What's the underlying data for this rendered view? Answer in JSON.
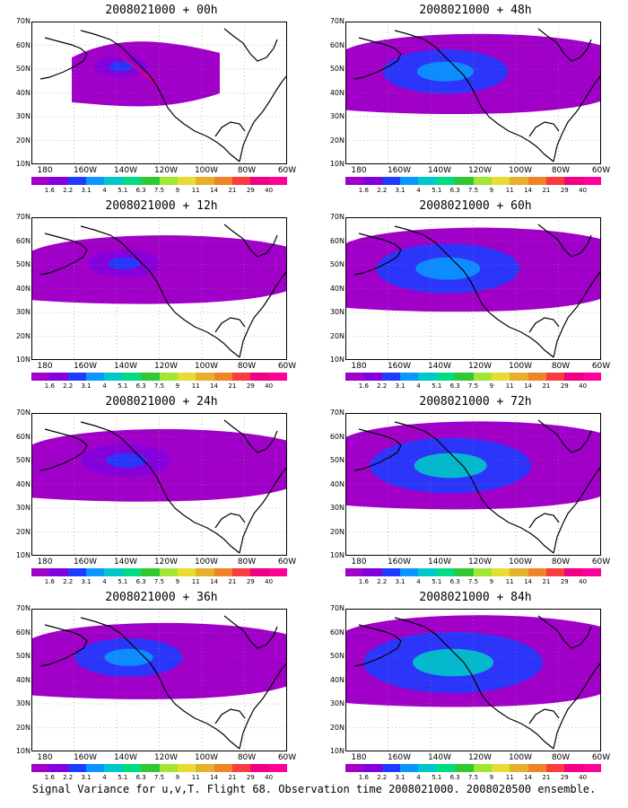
{
  "panels": [
    {
      "title": "2008021000 + 00h",
      "level": 0
    },
    {
      "title": "2008021000 + 48h",
      "level": 4
    },
    {
      "title": "2008021000 + 12h",
      "level": 1
    },
    {
      "title": "2008021000 + 60h",
      "level": 5
    },
    {
      "title": "2008021000 + 24h",
      "level": 2
    },
    {
      "title": "2008021000 + 72h",
      "level": 6
    },
    {
      "title": "2008021000 + 36h",
      "level": 3
    },
    {
      "title": "2008021000 + 84h",
      "level": 7
    }
  ],
  "lat_labels": [
    "70N",
    "60N",
    "50N",
    "40N",
    "30N",
    "20N",
    "10N"
  ],
  "lon_labels": [
    "180",
    "160W",
    "140W",
    "120W",
    "100W",
    "80W",
    "60W"
  ],
  "colorbar": {
    "labels": [
      "1.6",
      "2.2",
      "3.1",
      "4",
      "5.1",
      "6.3",
      "7.5",
      "9",
      "11",
      "14",
      "21",
      "29",
      "40"
    ],
    "colors": [
      "#a000c8",
      "#8200dc",
      "#1e3cff",
      "#0a96ff",
      "#00c8c8",
      "#00dc82",
      "#32c832",
      "#a0e632",
      "#e6dc32",
      "#e6af2d",
      "#f08228",
      "#fa3c3c",
      "#f00082",
      "#ff0099"
    ]
  },
  "caption": "Signal Variance for u,v,T. Flight 68. Observation time 2008021000. 2008020500 ensemble."
}
